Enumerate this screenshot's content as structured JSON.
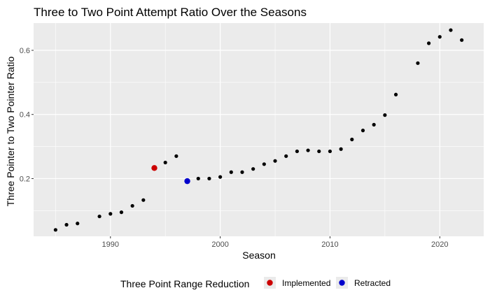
{
  "chart_data": {
    "type": "scatter",
    "title": "Three to Two Point Attempt Ratio Over the Seasons",
    "xlabel": "Season",
    "ylabel": "Three Pointer to Two Pointer Ratio",
    "xlim": [
      1983,
      2024
    ],
    "ylim": [
      0.02,
      0.685
    ],
    "xticks": [
      1990,
      2000,
      2010,
      2020
    ],
    "yticks": [
      0.2,
      0.4,
      0.6
    ],
    "ytick_labels": [
      "0.2",
      "0.4",
      "0.6"
    ],
    "grid": true,
    "points": [
      {
        "x": 1985,
        "y": 0.04
      },
      {
        "x": 1986,
        "y": 0.056
      },
      {
        "x": 1987,
        "y": 0.06
      },
      {
        "x": 1989,
        "y": 0.082
      },
      {
        "x": 1990,
        "y": 0.09
      },
      {
        "x": 1991,
        "y": 0.095
      },
      {
        "x": 1992,
        "y": 0.115
      },
      {
        "x": 1993,
        "y": 0.133
      },
      {
        "x": 1995,
        "y": 0.25
      },
      {
        "x": 1996,
        "y": 0.27
      },
      {
        "x": 1998,
        "y": 0.2
      },
      {
        "x": 1999,
        "y": 0.2
      },
      {
        "x": 2000,
        "y": 0.205
      },
      {
        "x": 2001,
        "y": 0.22
      },
      {
        "x": 2002,
        "y": 0.22
      },
      {
        "x": 2003,
        "y": 0.23
      },
      {
        "x": 2004,
        "y": 0.245
      },
      {
        "x": 2005,
        "y": 0.255
      },
      {
        "x": 2006,
        "y": 0.27
      },
      {
        "x": 2007,
        "y": 0.285
      },
      {
        "x": 2008,
        "y": 0.288
      },
      {
        "x": 2009,
        "y": 0.285
      },
      {
        "x": 2010,
        "y": 0.285
      },
      {
        "x": 2011,
        "y": 0.292
      },
      {
        "x": 2012,
        "y": 0.322
      },
      {
        "x": 2013,
        "y": 0.35
      },
      {
        "x": 2014,
        "y": 0.368
      },
      {
        "x": 2015,
        "y": 0.398
      },
      {
        "x": 2016,
        "y": 0.462
      },
      {
        "x": 2018,
        "y": 0.56
      },
      {
        "x": 2019,
        "y": 0.622
      },
      {
        "x": 2020,
        "y": 0.642
      },
      {
        "x": 2021,
        "y": 0.663
      },
      {
        "x": 2022,
        "y": 0.632
      }
    ],
    "highlights": [
      {
        "name": "Implemented",
        "x": 1994,
        "y": 0.233,
        "color": "#cc0000"
      },
      {
        "name": "Retracted",
        "x": 1997,
        "y": 0.192,
        "color": "#0000cc"
      }
    ],
    "point_color": "#000000",
    "panel_background": "#ebebeb",
    "grid_color": "#ffffff",
    "legend": {
      "title": "Three Point Range Reduction",
      "position": "bottom",
      "items": [
        {
          "label": "Implemented",
          "color": "#cc0000"
        },
        {
          "label": "Retracted",
          "color": "#0000cc"
        }
      ]
    }
  }
}
